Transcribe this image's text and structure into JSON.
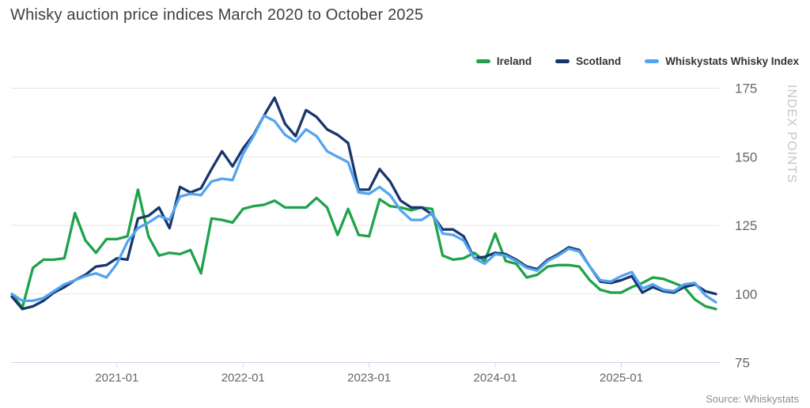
{
  "chart": {
    "title": "Whisky auction price indices March 2020 to October 2025",
    "source": "Source: Whiskystats"
  },
  "chart_data": {
    "type": "line",
    "title": "Whisky auction price indices March 2020 to October 2025",
    "ylabel": "INDEX POINTS",
    "ylim": [
      75,
      175
    ],
    "yticks": [
      75,
      100,
      125,
      150,
      175
    ],
    "xticks": [
      "2021-01",
      "2022-01",
      "2023-01",
      "2024-01",
      "2025-01"
    ],
    "grid": "horizontal",
    "legend_position": "top-right",
    "x": [
      "2020-03",
      "2020-04",
      "2020-05",
      "2020-06",
      "2020-07",
      "2020-08",
      "2020-09",
      "2020-10",
      "2020-11",
      "2020-12",
      "2021-01",
      "2021-02",
      "2021-03",
      "2021-04",
      "2021-05",
      "2021-06",
      "2021-07",
      "2021-08",
      "2021-09",
      "2021-10",
      "2021-11",
      "2021-12",
      "2022-01",
      "2022-02",
      "2022-03",
      "2022-04",
      "2022-05",
      "2022-06",
      "2022-07",
      "2022-08",
      "2022-09",
      "2022-10",
      "2022-11",
      "2022-12",
      "2023-01",
      "2023-02",
      "2023-03",
      "2023-04",
      "2023-05",
      "2023-06",
      "2023-07",
      "2023-08",
      "2023-09",
      "2023-10",
      "2023-11",
      "2023-12",
      "2024-01",
      "2024-02",
      "2024-03",
      "2024-04",
      "2024-05",
      "2024-06",
      "2024-07",
      "2024-08",
      "2024-09",
      "2024-10",
      "2024-11",
      "2024-12",
      "2025-01",
      "2025-02",
      "2025-03",
      "2025-04",
      "2025-05",
      "2025-06",
      "2025-07",
      "2025-08",
      "2025-09",
      "2025-10"
    ],
    "series": [
      {
        "name": "Ireland",
        "color": "#1fa24a",
        "values": [
          100,
          95,
          109.5,
          112.5,
          112.5,
          113,
          129.5,
          119.5,
          115,
          120,
          120,
          121,
          138,
          121,
          114,
          115,
          114.5,
          116,
          107.5,
          127.5,
          127,
          126,
          131,
          132,
          132.5,
          134,
          131.5,
          131.5,
          131.5,
          135,
          131.5,
          121.5,
          131,
          121.5,
          121,
          134.5,
          132,
          131.5,
          130.5,
          131.5,
          131,
          114,
          112.5,
          113,
          115,
          112,
          122,
          112,
          111,
          106,
          107,
          110,
          110.5,
          110.5,
          110,
          105,
          101.5,
          100.5,
          100.5,
          102.5,
          104,
          106,
          105.5,
          104,
          102.5,
          98,
          95.5,
          94.5
        ]
      },
      {
        "name": "Scotland",
        "color": "#17366b",
        "values": [
          99,
          94.5,
          95.5,
          97.5,
          100.5,
          102.5,
          105,
          107,
          110,
          110.5,
          113,
          112.5,
          127.5,
          128.5,
          131.5,
          124,
          139,
          137,
          138.5,
          145.5,
          152,
          146.5,
          153,
          158,
          165,
          171.5,
          162,
          157.5,
          167,
          164.5,
          160,
          158,
          155,
          138,
          138,
          145.5,
          141,
          134,
          131.5,
          131.5,
          129,
          123.5,
          123.5,
          121,
          113,
          113.5,
          115,
          114.5,
          112.5,
          110,
          109,
          112.5,
          114.5,
          117,
          116,
          110,
          104.5,
          104,
          105,
          106.5,
          100.5,
          102.5,
          101,
          100.5,
          102.5,
          103.5,
          101,
          100
        ]
      },
      {
        "name": "Whiskystats Whisky Index",
        "color": "#53a4f0",
        "values": [
          100,
          97.5,
          97.5,
          98.5,
          101,
          103.5,
          105,
          106.5,
          107.5,
          106,
          111,
          119,
          124,
          126,
          128.5,
          127,
          135.5,
          136.5,
          136,
          141,
          142,
          141.5,
          151,
          157.5,
          165,
          163,
          158,
          155.5,
          160,
          157.5,
          152,
          150,
          148,
          137,
          136.5,
          139,
          136,
          130.5,
          127,
          127,
          129.5,
          122,
          121.5,
          119.5,
          113,
          111,
          114.5,
          114,
          112,
          109.5,
          108.5,
          112,
          114,
          116.5,
          115.5,
          110,
          105,
          104.5,
          106.5,
          108,
          102,
          103.5,
          101.5,
          101,
          103.5,
          104,
          99.5,
          97
        ]
      }
    ]
  }
}
